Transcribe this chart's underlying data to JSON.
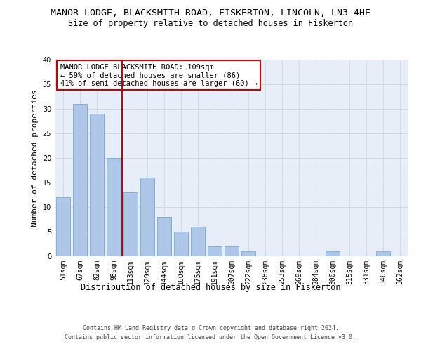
{
  "title": "MANOR LODGE, BLACKSMITH ROAD, FISKERTON, LINCOLN, LN3 4HE",
  "subtitle": "Size of property relative to detached houses in Fiskerton",
  "xlabel": "Distribution of detached houses by size in Fiskerton",
  "ylabel": "Number of detached properties",
  "categories": [
    "51sqm",
    "67sqm",
    "82sqm",
    "98sqm",
    "113sqm",
    "129sqm",
    "144sqm",
    "160sqm",
    "175sqm",
    "191sqm",
    "207sqm",
    "222sqm",
    "238sqm",
    "253sqm",
    "269sqm",
    "284sqm",
    "300sqm",
    "315sqm",
    "331sqm",
    "346sqm",
    "362sqm"
  ],
  "values": [
    12,
    31,
    29,
    20,
    13,
    16,
    8,
    5,
    6,
    2,
    2,
    1,
    0,
    0,
    0,
    0,
    1,
    0,
    0,
    1,
    0
  ],
  "bar_color": "#aec6e8",
  "bar_edgecolor": "#7aaad0",
  "vline_x": 3.5,
  "vline_color": "#cc0000",
  "legend_text_line1": "MANOR LODGE BLACKSMITH ROAD: 109sqm",
  "legend_text_line2": "← 59% of detached houses are smaller (86)",
  "legend_text_line3": "41% of semi-detached houses are larger (60) →",
  "legend_box_color": "#ffffff",
  "legend_box_edgecolor": "#cc0000",
  "ylim": [
    0,
    40
  ],
  "yticks": [
    0,
    5,
    10,
    15,
    20,
    25,
    30,
    35,
    40
  ],
  "grid_color": "#d0d8e8",
  "background_color": "#e8eef8",
  "footer_line1": "Contains HM Land Registry data © Crown copyright and database right 2024.",
  "footer_line2": "Contains public sector information licensed under the Open Government Licence v3.0.",
  "title_fontsize": 9.5,
  "subtitle_fontsize": 8.5,
  "xlabel_fontsize": 8.5,
  "ylabel_fontsize": 8,
  "tick_fontsize": 7,
  "footer_fontsize": 6,
  "legend_fontsize": 7.5
}
